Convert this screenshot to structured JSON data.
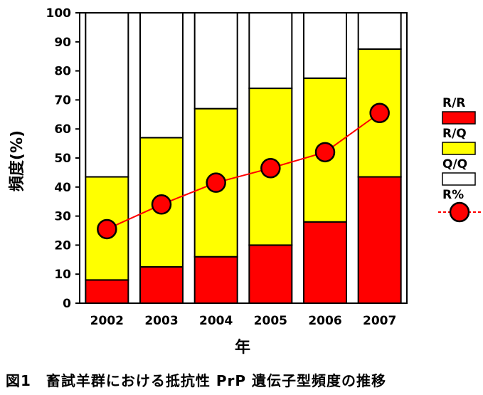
{
  "chart_data": {
    "type": "bar",
    "stacked": true,
    "categories": [
      "2002",
      "2003",
      "2004",
      "2005",
      "2006",
      "2007"
    ],
    "series": [
      {
        "name": "R/R",
        "values": [
          8,
          12.5,
          16,
          20,
          28,
          43.5
        ],
        "color": "#ff0000"
      },
      {
        "name": "R/Q",
        "values": [
          35.5,
          44.5,
          51,
          54,
          49.5,
          44
        ],
        "color": "#ffff00"
      },
      {
        "name": "Q/Q",
        "values": [
          56.5,
          43,
          33,
          26,
          22.5,
          12.5
        ],
        "color": "#ffffff"
      }
    ],
    "line_series": {
      "name": "R%",
      "values": [
        25.5,
        34,
        41.5,
        46.5,
        52,
        65.5
      ],
      "color": "#ff0000"
    },
    "ylim": [
      0,
      100
    ],
    "yticks": [
      "0",
      "10",
      "20",
      "30",
      "40",
      "50",
      "60",
      "70",
      "80",
      "90",
      "100"
    ],
    "ylabel": "頻度(%)",
    "xlabel": "年",
    "legend_placement": "right",
    "grid": false
  },
  "caption": "図1　畜試羊群における抵抗性 PrP 遺伝子型頻度の推移"
}
